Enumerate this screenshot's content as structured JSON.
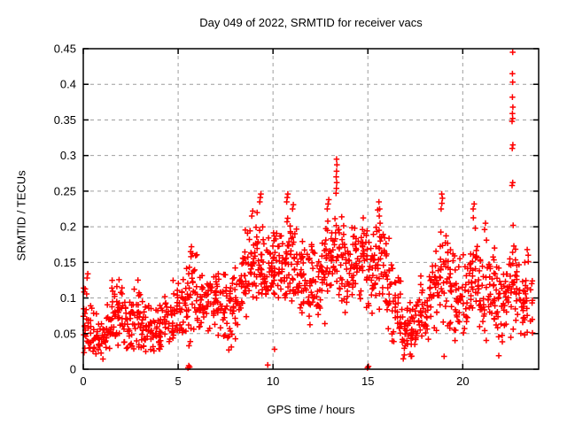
{
  "chart_data": {
    "type": "scatter",
    "title": "Day 049 of 2022, SRMTID for receiver vacs",
    "xlabel": "GPS time / hours",
    "ylabel": "SRMTID / TECUs",
    "xlim": [
      0,
      24
    ],
    "ylim": [
      0,
      0.45
    ],
    "xticks": [
      0,
      5,
      10,
      15,
      20
    ],
    "xtick_labels": [
      "0",
      "5",
      "10",
      "15",
      "20"
    ],
    "yticks": [
      0,
      0.05,
      0.1,
      0.15,
      0.2,
      0.25,
      0.3,
      0.35,
      0.4,
      0.45
    ],
    "ytick_labels": [
      "0",
      "0.05",
      "0.1",
      "0.15",
      "0.2",
      "0.25",
      "0.3",
      "0.35",
      "0.4",
      "0.45"
    ],
    "grid": true,
    "grid_color": "#9e9e9e",
    "axis_color": "#000000",
    "background_color": "#ffffff",
    "marker": {
      "shape": "plus",
      "color": "#ff0000",
      "size": 7
    },
    "legend": "none",
    "seed": 20220049,
    "series": [
      {
        "name": "SRMTID",
        "representation": "density_bins",
        "bin_width": 0.25,
        "bins_format": [
          "hour_start",
          "mean_tecu",
          "half_spread_tecu",
          "count"
        ],
        "bins": [
          [
            0.0,
            0.07,
            0.05,
            18
          ],
          [
            0.25,
            0.058,
            0.04,
            15
          ],
          [
            0.5,
            0.048,
            0.03,
            14
          ],
          [
            0.75,
            0.04,
            0.025,
            14
          ],
          [
            1.0,
            0.05,
            0.03,
            14
          ],
          [
            1.25,
            0.062,
            0.035,
            14
          ],
          [
            1.5,
            0.08,
            0.048,
            16
          ],
          [
            1.75,
            0.09,
            0.045,
            16
          ],
          [
            2.0,
            0.078,
            0.04,
            15
          ],
          [
            2.25,
            0.065,
            0.035,
            15
          ],
          [
            2.5,
            0.07,
            0.04,
            15
          ],
          [
            2.75,
            0.075,
            0.045,
            15
          ],
          [
            3.0,
            0.06,
            0.035,
            14
          ],
          [
            3.25,
            0.055,
            0.03,
            14
          ],
          [
            3.5,
            0.05,
            0.03,
            14
          ],
          [
            3.75,
            0.055,
            0.03,
            14
          ],
          [
            4.0,
            0.065,
            0.035,
            14
          ],
          [
            4.25,
            0.07,
            0.035,
            14
          ],
          [
            4.5,
            0.075,
            0.04,
            15
          ],
          [
            4.75,
            0.08,
            0.04,
            15
          ],
          [
            5.0,
            0.085,
            0.04,
            15
          ],
          [
            5.25,
            0.09,
            0.045,
            15
          ],
          [
            5.5,
            0.1,
            0.058,
            16
          ],
          [
            5.75,
            0.108,
            0.055,
            15
          ],
          [
            6.0,
            0.09,
            0.04,
            15
          ],
          [
            6.25,
            0.085,
            0.04,
            15
          ],
          [
            6.5,
            0.09,
            0.045,
            15
          ],
          [
            6.75,
            0.095,
            0.045,
            15
          ],
          [
            7.0,
            0.09,
            0.05,
            15
          ],
          [
            7.25,
            0.085,
            0.05,
            15
          ],
          [
            7.5,
            0.07,
            0.045,
            14
          ],
          [
            7.75,
            0.075,
            0.045,
            14
          ],
          [
            8.0,
            0.09,
            0.05,
            15
          ],
          [
            8.25,
            0.11,
            0.05,
            16
          ],
          [
            8.5,
            0.13,
            0.058,
            17
          ],
          [
            8.75,
            0.15,
            0.06,
            17
          ],
          [
            9.0,
            0.158,
            0.06,
            17
          ],
          [
            9.25,
            0.15,
            0.068,
            17
          ],
          [
            9.5,
            0.122,
            0.06,
            16
          ],
          [
            9.75,
            0.13,
            0.06,
            16
          ],
          [
            10.0,
            0.14,
            0.055,
            17
          ],
          [
            10.25,
            0.15,
            0.05,
            17
          ],
          [
            10.5,
            0.15,
            0.055,
            17
          ],
          [
            10.75,
            0.158,
            0.06,
            17
          ],
          [
            11.0,
            0.15,
            0.06,
            17
          ],
          [
            11.25,
            0.14,
            0.055,
            16
          ],
          [
            11.5,
            0.13,
            0.05,
            16
          ],
          [
            11.75,
            0.12,
            0.05,
            16
          ],
          [
            12.0,
            0.13,
            0.05,
            16
          ],
          [
            12.25,
            0.12,
            0.05,
            16
          ],
          [
            12.5,
            0.13,
            0.055,
            16
          ],
          [
            12.75,
            0.148,
            0.06,
            17
          ],
          [
            13.0,
            0.158,
            0.05,
            16
          ],
          [
            13.25,
            0.168,
            0.058,
            16
          ],
          [
            13.5,
            0.15,
            0.05,
            16
          ],
          [
            13.75,
            0.14,
            0.05,
            16
          ],
          [
            14.0,
            0.148,
            0.05,
            16
          ],
          [
            14.25,
            0.14,
            0.055,
            16
          ],
          [
            14.5,
            0.148,
            0.05,
            16
          ],
          [
            14.75,
            0.15,
            0.058,
            16
          ],
          [
            15.0,
            0.14,
            0.06,
            16
          ],
          [
            15.25,
            0.148,
            0.055,
            16
          ],
          [
            15.5,
            0.158,
            0.06,
            16
          ],
          [
            15.75,
            0.14,
            0.06,
            16
          ],
          [
            16.0,
            0.12,
            0.058,
            15
          ],
          [
            16.25,
            0.1,
            0.05,
            15
          ],
          [
            16.5,
            0.08,
            0.05,
            15
          ],
          [
            16.75,
            0.06,
            0.038,
            15
          ],
          [
            17.0,
            0.055,
            0.035,
            15
          ],
          [
            17.25,
            0.05,
            0.033,
            15
          ],
          [
            17.5,
            0.06,
            0.04,
            14
          ],
          [
            17.75,
            0.08,
            0.045,
            15
          ],
          [
            18.0,
            0.09,
            0.05,
            15
          ],
          [
            18.25,
            0.1,
            0.05,
            15
          ],
          [
            18.5,
            0.12,
            0.058,
            16
          ],
          [
            18.75,
            0.14,
            0.075,
            16
          ],
          [
            19.0,
            0.13,
            0.068,
            16
          ],
          [
            19.25,
            0.11,
            0.058,
            15
          ],
          [
            19.5,
            0.1,
            0.05,
            15
          ],
          [
            19.75,
            0.11,
            0.055,
            15
          ],
          [
            20.0,
            0.1,
            0.05,
            15
          ],
          [
            20.25,
            0.12,
            0.058,
            15
          ],
          [
            20.5,
            0.138,
            0.068,
            16
          ],
          [
            20.75,
            0.11,
            0.055,
            15
          ],
          [
            21.0,
            0.1,
            0.05,
            15
          ],
          [
            21.25,
            0.12,
            0.058,
            15
          ],
          [
            21.5,
            0.11,
            0.058,
            15
          ],
          [
            21.75,
            0.1,
            0.058,
            15
          ],
          [
            22.0,
            0.09,
            0.055,
            15
          ],
          [
            22.25,
            0.11,
            0.058,
            16
          ],
          [
            22.5,
            0.12,
            0.068,
            17
          ],
          [
            22.75,
            0.11,
            0.058,
            16
          ],
          [
            23.0,
            0.095,
            0.05,
            14
          ],
          [
            23.25,
            0.105,
            0.055,
            14
          ],
          [
            23.5,
            0.09,
            0.05,
            8
          ]
        ],
        "outlier_points": [
          [
            0.2,
            0.128
          ],
          [
            0.24,
            0.134
          ],
          [
            2.88,
            0.125
          ],
          [
            5.52,
            0.002
          ],
          [
            5.56,
            0.005
          ],
          [
            5.61,
            0.003
          ],
          [
            5.66,
            0.165
          ],
          [
            5.7,
            0.172
          ],
          [
            5.68,
            0.158
          ],
          [
            8.88,
            0.215
          ],
          [
            8.93,
            0.222
          ],
          [
            9.3,
            0.235
          ],
          [
            9.33,
            0.241
          ],
          [
            9.36,
            0.246
          ],
          [
            9.72,
            0.006
          ],
          [
            10.08,
            0.028
          ],
          [
            10.72,
            0.235
          ],
          [
            10.75,
            0.241
          ],
          [
            10.78,
            0.246
          ],
          [
            10.74,
            0.207
          ],
          [
            10.77,
            0.212
          ],
          [
            11.03,
            0.225
          ],
          [
            11.07,
            0.231
          ],
          [
            12.86,
            0.225
          ],
          [
            12.9,
            0.232
          ],
          [
            12.94,
            0.238
          ],
          [
            13.32,
            0.247
          ],
          [
            13.34,
            0.254
          ],
          [
            13.36,
            0.262
          ],
          [
            13.33,
            0.27
          ],
          [
            13.35,
            0.278
          ],
          [
            13.37,
            0.287
          ],
          [
            13.35,
            0.295
          ],
          [
            14.98,
            0.002
          ],
          [
            15.03,
            0.004
          ],
          [
            15.58,
            0.235
          ],
          [
            15.62,
            0.225
          ],
          [
            15.6,
            0.215
          ],
          [
            15.64,
            0.205
          ],
          [
            15.59,
            0.195
          ],
          [
            15.63,
            0.186
          ],
          [
            16.92,
            0.02
          ],
          [
            17.28,
            0.018
          ],
          [
            18.86,
            0.225
          ],
          [
            18.9,
            0.233
          ],
          [
            18.93,
            0.24
          ],
          [
            18.89,
            0.246
          ],
          [
            19.02,
            0.018
          ],
          [
            20.55,
            0.225
          ],
          [
            20.6,
            0.232
          ],
          [
            21.15,
            0.196
          ],
          [
            21.2,
            0.205
          ],
          [
            21.9,
            0.019
          ],
          [
            22.6,
            0.258
          ],
          [
            22.63,
            0.262
          ],
          [
            22.61,
            0.31
          ],
          [
            22.64,
            0.315
          ],
          [
            22.6,
            0.348
          ],
          [
            22.63,
            0.352
          ],
          [
            22.62,
            0.359
          ],
          [
            22.64,
            0.368
          ],
          [
            22.62,
            0.382
          ],
          [
            22.63,
            0.403
          ],
          [
            22.62,
            0.415
          ],
          [
            22.63,
            0.445
          ],
          [
            23.4,
            0.168
          ],
          [
            23.45,
            0.16
          ]
        ]
      }
    ]
  }
}
